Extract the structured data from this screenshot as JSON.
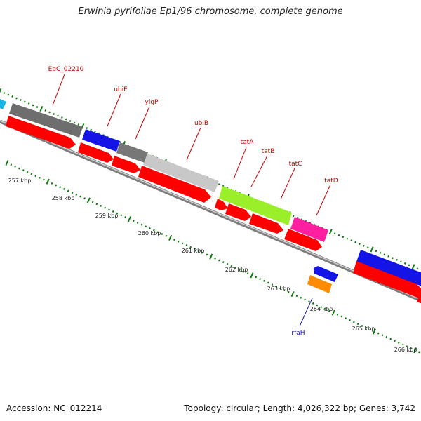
{
  "title": "Erwinia pyrifoliae Ep1/96 chromosome, complete genome",
  "footer": {
    "accession": "Accession: NC_012214",
    "topology": "Topology: circular; Length: 4,026,322 bp; Genes: 3,742"
  },
  "colors": {
    "cds": "#ff0000",
    "label_red": "#cc0000",
    "label_blue": "#1a1aaa",
    "tick": "#137a13",
    "backbone": "#999999"
  },
  "genes_top": [
    {
      "name": "EpC_02210",
      "color": "#6e6e6e",
      "labeled": true
    },
    {
      "name": "ubiE",
      "color": "#1414e6",
      "labeled": true
    },
    {
      "name": "yigP",
      "color": "#777777",
      "labeled": true
    },
    {
      "name": "ubiB",
      "color": "#c8c8c8",
      "labeled": true
    },
    {
      "name": "tatA",
      "color": "#9aef2a",
      "labeled": true
    },
    {
      "name": "tatB",
      "color": "#9aef2a",
      "labeled": true
    },
    {
      "name": "tatC",
      "color": "#9aef2a",
      "labeled": true
    },
    {
      "name": "tatD",
      "color": "#ff1fa0",
      "labeled": true
    }
  ],
  "genes_bottom": [
    {
      "name": "rfaH",
      "color": "#ff8c00",
      "labeled": true
    }
  ],
  "tick_labels": [
    "257 kbp",
    "258 kbp",
    "259 kbp",
    "260 kbp",
    "261 kbp",
    "262 kbp",
    "263 kbp",
    "264 kbp",
    "265 kbp",
    "266 kbp"
  ]
}
